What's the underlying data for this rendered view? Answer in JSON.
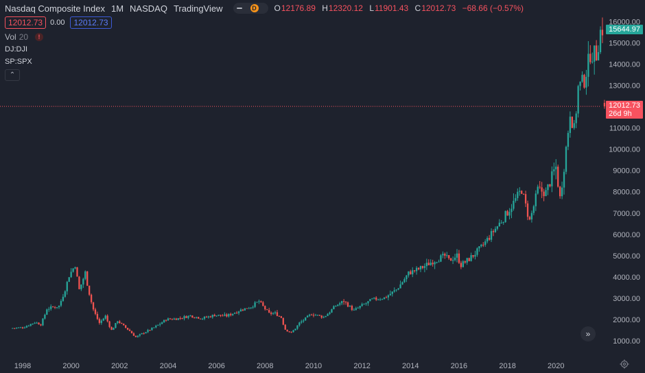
{
  "header": {
    "symbol": "Nasdaq Composite Index",
    "interval": "1M",
    "exchange": "NASDAQ",
    "source": "TradingView",
    "badge": "D",
    "ohlc": {
      "o_label": "O",
      "o": "12176.89",
      "h_label": "H",
      "h": "12320.12",
      "l_label": "L",
      "l": "11901.43",
      "c_label": "C",
      "c": "12012.73",
      "change": "−68.66 (−0.57%)"
    }
  },
  "values_row": {
    "left": "12012.73",
    "mid": "0.00",
    "right": "12012.73"
  },
  "indicators": {
    "vol_label": "Vol",
    "vol_value": "20",
    "vol_warning": "!",
    "symbol_1": "DJ:DJI",
    "symbol_2": "SP:SPX"
  },
  "price_scale": {
    "last_value": "15644.97",
    "current_value": "12012.73",
    "countdown": "26d 9h"
  },
  "colors": {
    "background": "#1e222d",
    "up": "#26a69a",
    "down": "#ef5350",
    "axis_text": "#b2b5be",
    "price_line": "#f7525f"
  },
  "chart_data": {
    "type": "candlestick",
    "title": "Nasdaq Composite Index",
    "interval": "1M",
    "x_ticks": [
      "1998",
      "2000",
      "2002",
      "2004",
      "2006",
      "2008",
      "2010",
      "2012",
      "2014",
      "2016",
      "2018",
      "2020"
    ],
    "y_ticks": [
      1000,
      2000,
      3000,
      4000,
      5000,
      6000,
      7000,
      8000,
      9000,
      10000,
      11000,
      12000,
      13000,
      14000,
      15000,
      16000
    ],
    "ylim": [
      700,
      16400
    ],
    "grid": false,
    "current_price": 12012.73,
    "series": [
      {
        "date": "1997-07",
        "close": 1593
      },
      {
        "date": "1998-01",
        "close": 1620
      },
      {
        "date": "1998-07",
        "close": 1872
      },
      {
        "date": "1998-10",
        "close": 1771
      },
      {
        "date": "1999-01",
        "close": 2505
      },
      {
        "date": "1999-07",
        "close": 2638
      },
      {
        "date": "1999-12",
        "close": 4069
      },
      {
        "date": "2000-03",
        "close": 4573
      },
      {
        "date": "2000-05",
        "close": 3400
      },
      {
        "date": "2000-08",
        "close": 4206
      },
      {
        "date": "2000-12",
        "close": 2470
      },
      {
        "date": "2001-03",
        "close": 1840
      },
      {
        "date": "2001-06",
        "close": 2160
      },
      {
        "date": "2001-09",
        "close": 1499
      },
      {
        "date": "2001-12",
        "close": 1950
      },
      {
        "date": "2002-06",
        "close": 1463
      },
      {
        "date": "2002-09",
        "close": 1172
      },
      {
        "date": "2002-12",
        "close": 1335
      },
      {
        "date": "2003-06",
        "close": 1622
      },
      {
        "date": "2003-12",
        "close": 2003
      },
      {
        "date": "2004-06",
        "close": 2047
      },
      {
        "date": "2004-12",
        "close": 2175
      },
      {
        "date": "2005-06",
        "close": 2057
      },
      {
        "date": "2005-12",
        "close": 2205
      },
      {
        "date": "2006-06",
        "close": 2172
      },
      {
        "date": "2006-12",
        "close": 2415
      },
      {
        "date": "2007-06",
        "close": 2603
      },
      {
        "date": "2007-10",
        "close": 2859
      },
      {
        "date": "2008-03",
        "close": 2279
      },
      {
        "date": "2008-06",
        "close": 2293
      },
      {
        "date": "2008-09",
        "close": 2092
      },
      {
        "date": "2008-11",
        "close": 1536
      },
      {
        "date": "2009-02",
        "close": 1377
      },
      {
        "date": "2009-06",
        "close": 1835
      },
      {
        "date": "2009-12",
        "close": 2269
      },
      {
        "date": "2010-06",
        "close": 2109
      },
      {
        "date": "2010-12",
        "close": 2653
      },
      {
        "date": "2011-04",
        "close": 2873
      },
      {
        "date": "2011-09",
        "close": 2415
      },
      {
        "date": "2011-12",
        "close": 2605
      },
      {
        "date": "2012-06",
        "close": 2935
      },
      {
        "date": "2012-12",
        "close": 3020
      },
      {
        "date": "2013-06",
        "close": 3403
      },
      {
        "date": "2013-12",
        "close": 4177
      },
      {
        "date": "2014-06",
        "close": 4408
      },
      {
        "date": "2014-12",
        "close": 4736
      },
      {
        "date": "2015-06",
        "close": 4987
      },
      {
        "date": "2015-08",
        "close": 4776
      },
      {
        "date": "2015-12",
        "close": 5007
      },
      {
        "date": "2016-02",
        "close": 4558
      },
      {
        "date": "2016-06",
        "close": 4843
      },
      {
        "date": "2016-12",
        "close": 5383
      },
      {
        "date": "2017-06",
        "close": 6140
      },
      {
        "date": "2017-12",
        "close": 6903
      },
      {
        "date": "2018-08",
        "close": 8110
      },
      {
        "date": "2018-12",
        "close": 6635
      },
      {
        "date": "2019-04",
        "close": 8095
      },
      {
        "date": "2019-08",
        "close": 7963
      },
      {
        "date": "2019-12",
        "close": 8973
      },
      {
        "date": "2020-01",
        "close": 9151
      },
      {
        "date": "2020-03",
        "close": 7700
      },
      {
        "date": "2020-06",
        "close": 10058
      },
      {
        "date": "2020-08",
        "close": 11775
      },
      {
        "date": "2020-10",
        "close": 10911
      },
      {
        "date": "2020-12",
        "close": 12888
      },
      {
        "date": "2021-03",
        "close": 13247
      },
      {
        "date": "2021-06",
        "close": 14504
      },
      {
        "date": "2021-09",
        "close": 14448
      },
      {
        "date": "2021-11",
        "close": 15538
      },
      {
        "date": "2021-12",
        "close": 15645
      },
      {
        "date": "2022-01",
        "close": 12012.73
      }
    ]
  }
}
